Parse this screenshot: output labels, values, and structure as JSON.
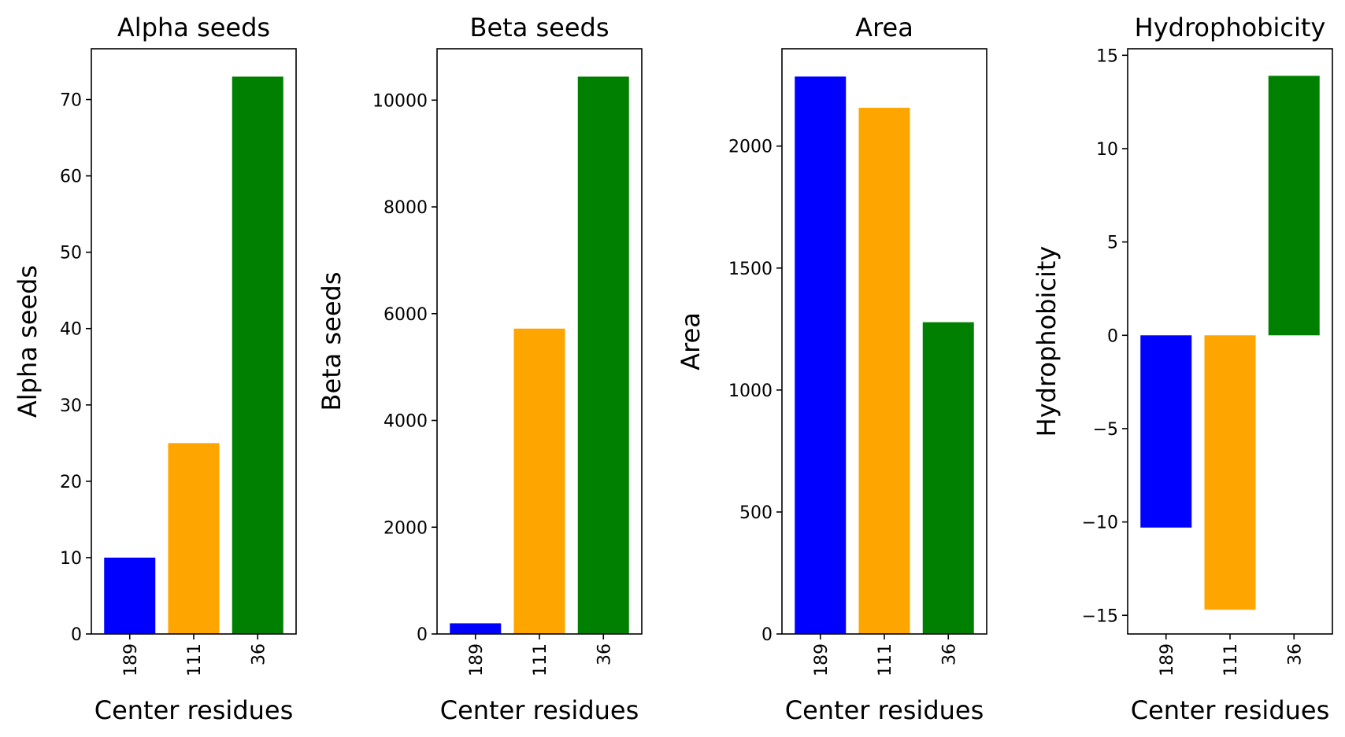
{
  "chart_data": [
    {
      "type": "bar",
      "title": "Alpha seeds",
      "xlabel": "Center residues",
      "ylabel": "Alpha seeds",
      "categories": [
        "189",
        "111",
        "36"
      ],
      "values": [
        10,
        25,
        73
      ],
      "colors": [
        "#0000ff",
        "#ffa500",
        "#008000"
      ],
      "ylim": [
        0,
        76.65
      ],
      "yticks": [
        0,
        10,
        20,
        30,
        40,
        50,
        60,
        70
      ],
      "ytick_labels": [
        "0",
        "10",
        "20",
        "30",
        "40",
        "50",
        "60",
        "70"
      ]
    },
    {
      "type": "bar",
      "title": "Beta seeds",
      "xlabel": "Center residues",
      "ylabel": "Beta seeds",
      "categories": [
        "189",
        "111",
        "36"
      ],
      "values": [
        200,
        5720,
        10440
      ],
      "colors": [
        "#0000ff",
        "#ffa500",
        "#008000"
      ],
      "ylim": [
        0,
        10962
      ],
      "yticks": [
        0,
        2000,
        4000,
        6000,
        8000,
        10000
      ],
      "ytick_labels": [
        "0",
        "2000",
        "4000",
        "6000",
        "8000",
        "10000"
      ]
    },
    {
      "type": "bar",
      "title": "Area",
      "xlabel": "Center residues",
      "ylabel": "Area",
      "categories": [
        "189",
        "111",
        "36"
      ],
      "values": [
        2285,
        2157,
        1278
      ],
      "colors": [
        "#0000ff",
        "#ffa500",
        "#008000"
      ],
      "ylim": [
        0,
        2399
      ],
      "yticks": [
        0,
        500,
        1000,
        1500,
        2000
      ],
      "ytick_labels": [
        "0",
        "500",
        "1000",
        "1500",
        "2000"
      ]
    },
    {
      "type": "bar",
      "title": "Hydrophobicity",
      "xlabel": "Center residues",
      "ylabel": "Hydrophobicity",
      "categories": [
        "189",
        "111",
        "36"
      ],
      "values": [
        -10.3,
        -14.7,
        13.9
      ],
      "colors": [
        "#0000ff",
        "#ffa500",
        "#008000"
      ],
      "ylim": [
        -16.0,
        15.35
      ],
      "yticks": [
        -15,
        -10,
        -5,
        0,
        5,
        10,
        15
      ],
      "ytick_labels": [
        "−15",
        "−10",
        "−5",
        "0",
        "5",
        "10",
        "15"
      ]
    }
  ]
}
